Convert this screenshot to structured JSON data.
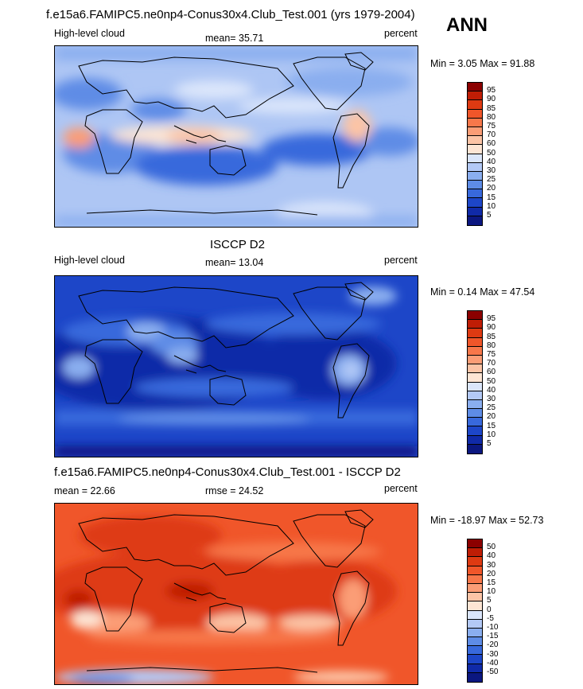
{
  "chart_data": [
    {
      "type": "heatmap",
      "id": "model",
      "title": "f.e15a6.FAMIPC5.ne0np4-Conus30x4.Club_Test.001 (yrs 1979-2004)",
      "season": "ANN",
      "left_label": "High-level cloud",
      "stat_text": "mean=  35.71",
      "units": "percent",
      "range_text": "Min =   3.05 Max =  91.88",
      "colorbar": {
        "labels": [
          "95",
          "90",
          "85",
          "80",
          "75",
          "70",
          "60",
          "50",
          "40",
          "30",
          "25",
          "20",
          "15",
          "10",
          "5"
        ],
        "colors": [
          "#8b0000",
          "#bf1d05",
          "#de3a12",
          "#f0562a",
          "#f7774a",
          "#fb9d76",
          "#fcc4a6",
          "#fde5d4",
          "#dbe6fb",
          "#b3c9f6",
          "#8aaeef",
          "#5e8ce6",
          "#3869dc",
          "#1d46c8",
          "#102aa8",
          "#0b1780"
        ]
      }
    },
    {
      "type": "heatmap",
      "id": "obs",
      "title": "ISCCP D2",
      "left_label": "High-level cloud",
      "stat_text": "mean=  13.04",
      "units": "percent",
      "range_text": "Min =   0.14 Max =  47.54",
      "colorbar": {
        "labels": [
          "95",
          "90",
          "85",
          "80",
          "75",
          "70",
          "60",
          "50",
          "40",
          "30",
          "25",
          "20",
          "15",
          "10",
          "5"
        ],
        "colors": [
          "#8b0000",
          "#bf1d05",
          "#de3a12",
          "#f0562a",
          "#f7774a",
          "#fb9d76",
          "#fcc4a6",
          "#fde5d4",
          "#dbe6fb",
          "#b3c9f6",
          "#8aaeef",
          "#5e8ce6",
          "#3869dc",
          "#1d46c8",
          "#102aa8",
          "#0b1780"
        ]
      }
    },
    {
      "type": "heatmap",
      "id": "diff",
      "title": "f.e15a6.FAMIPC5.ne0np4-Conus30x4.Club_Test.001 - ISCCP D2",
      "left_label": "mean =  22.66",
      "stat_text": "rmse =  24.52",
      "units": "percent",
      "range_text": "Min = -18.97 Max =  52.73",
      "colorbar": {
        "labels": [
          "50",
          "40",
          "30",
          "20",
          "15",
          "10",
          "5",
          "0",
          "-5",
          "-10",
          "-15",
          "-20",
          "-30",
          "-40",
          "-50"
        ],
        "colors": [
          "#8b0000",
          "#bf1d05",
          "#de3a12",
          "#f0562a",
          "#f7774a",
          "#fb9d76",
          "#fcc4a6",
          "#fde5d4",
          "#dbe6fb",
          "#b3c9f6",
          "#8aaeef",
          "#5e8ce6",
          "#3869dc",
          "#1d46c8",
          "#102aa8",
          "#0b1780"
        ]
      }
    }
  ]
}
